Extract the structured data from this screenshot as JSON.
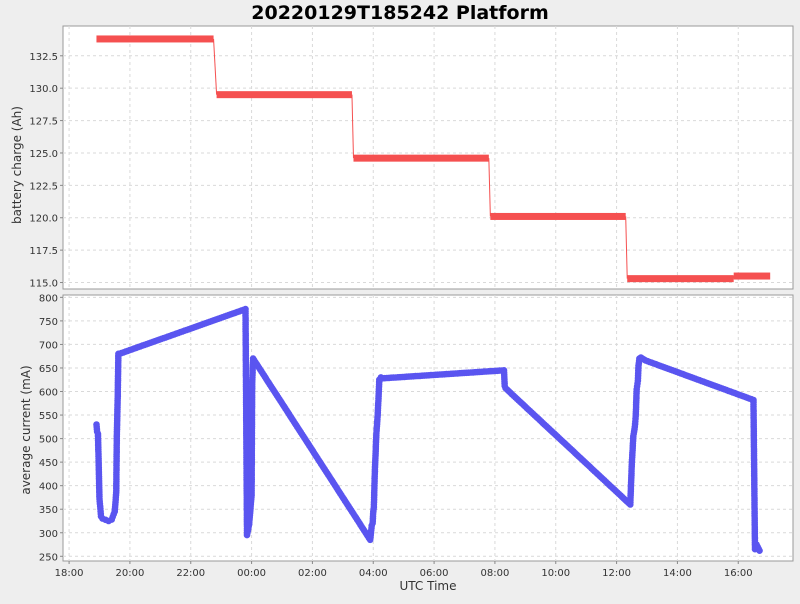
{
  "chart_data": {
    "type": "line",
    "title": "20220129T185242 Platform",
    "xlabel": "UTC Time",
    "x_tick_labels": [
      "18:00",
      "20:00",
      "22:00",
      "00:00",
      "02:00",
      "04:00",
      "06:00",
      "08:00",
      "10:00",
      "12:00",
      "14:00",
      "16:00"
    ],
    "x_tick_hours": [
      18,
      20,
      22,
      24,
      26,
      28,
      30,
      32,
      34,
      36,
      38,
      40
    ],
    "x_range_hours": [
      17.8,
      41.8
    ],
    "grid": true,
    "colors": {
      "top_series": "#f55050",
      "bottom_series": "#5a55f0",
      "grid": "#d9d9d9",
      "background": "#eeeeee",
      "plot_bg": "#ffffff"
    },
    "panels": [
      {
        "ylabel": "battery charge (Ah)",
        "ylim": [
          114.5,
          134.8
        ],
        "y_ticks": [
          115.0,
          117.5,
          120.0,
          122.5,
          125.0,
          127.5,
          130.0,
          132.5
        ],
        "y_tick_labels": [
          "115.0",
          "117.5",
          "120.0",
          "122.5",
          "125.0",
          "127.5",
          "130.0",
          "132.5"
        ],
        "style": "step-segments",
        "segments": [
          {
            "x_start_hours": 18.9,
            "x_end_hours": 22.75,
            "value": 133.8
          },
          {
            "x_start_hours": 22.85,
            "x_end_hours": 27.3,
            "value": 129.5
          },
          {
            "x_start_hours": 27.35,
            "x_end_hours": 31.8,
            "value": 124.6
          },
          {
            "x_start_hours": 31.85,
            "x_end_hours": 36.3,
            "value": 120.1
          },
          {
            "x_start_hours": 36.35,
            "x_end_hours": 39.85,
            "value": 115.3
          },
          {
            "x_start_hours": 39.85,
            "x_end_hours": 41.05,
            "value": 115.5
          }
        ]
      },
      {
        "ylabel": "average current (mA)",
        "ylim": [
          240,
          805
        ],
        "y_ticks": [
          250,
          300,
          350,
          400,
          450,
          500,
          550,
          600,
          650,
          700,
          750,
          800
        ],
        "y_tick_labels": [
          "250",
          "300",
          "350",
          "400",
          "450",
          "500",
          "550",
          "600",
          "650",
          "700",
          "750",
          "800"
        ],
        "style": "line-with-markers",
        "x_hours": [
          18.9,
          18.92,
          18.95,
          19.0,
          19.05,
          19.1,
          19.3,
          19.4,
          19.5,
          19.55,
          19.57,
          19.6,
          19.62,
          19.65,
          23.8,
          23.85,
          23.92,
          24.0,
          24.02,
          24.05,
          27.9,
          27.95,
          27.98,
          28.0,
          28.02,
          28.05,
          28.1,
          28.15,
          28.2,
          28.25,
          28.3,
          32.3,
          32.32,
          32.35,
          36.45,
          36.5,
          36.55,
          36.6,
          36.63,
          36.66,
          36.7,
          36.72,
          36.75,
          36.8,
          36.85,
          36.9,
          36.95,
          40.5,
          40.55,
          40.6,
          40.7
        ],
        "values": [
          530,
          515,
          510,
          372,
          335,
          330,
          325,
          328,
          345,
          385,
          505,
          590,
          680,
          680,
          775,
          295,
          318,
          380,
          620,
          670,
          285,
          315,
          320,
          345,
          355,
          425,
          507,
          555,
          625,
          630,
          628,
          645,
          612,
          607,
          360,
          445,
          505,
          525,
          548,
          605,
          623,
          655,
          670,
          672,
          670,
          668,
          666,
          582,
          265,
          275,
          262
        ]
      }
    ]
  }
}
